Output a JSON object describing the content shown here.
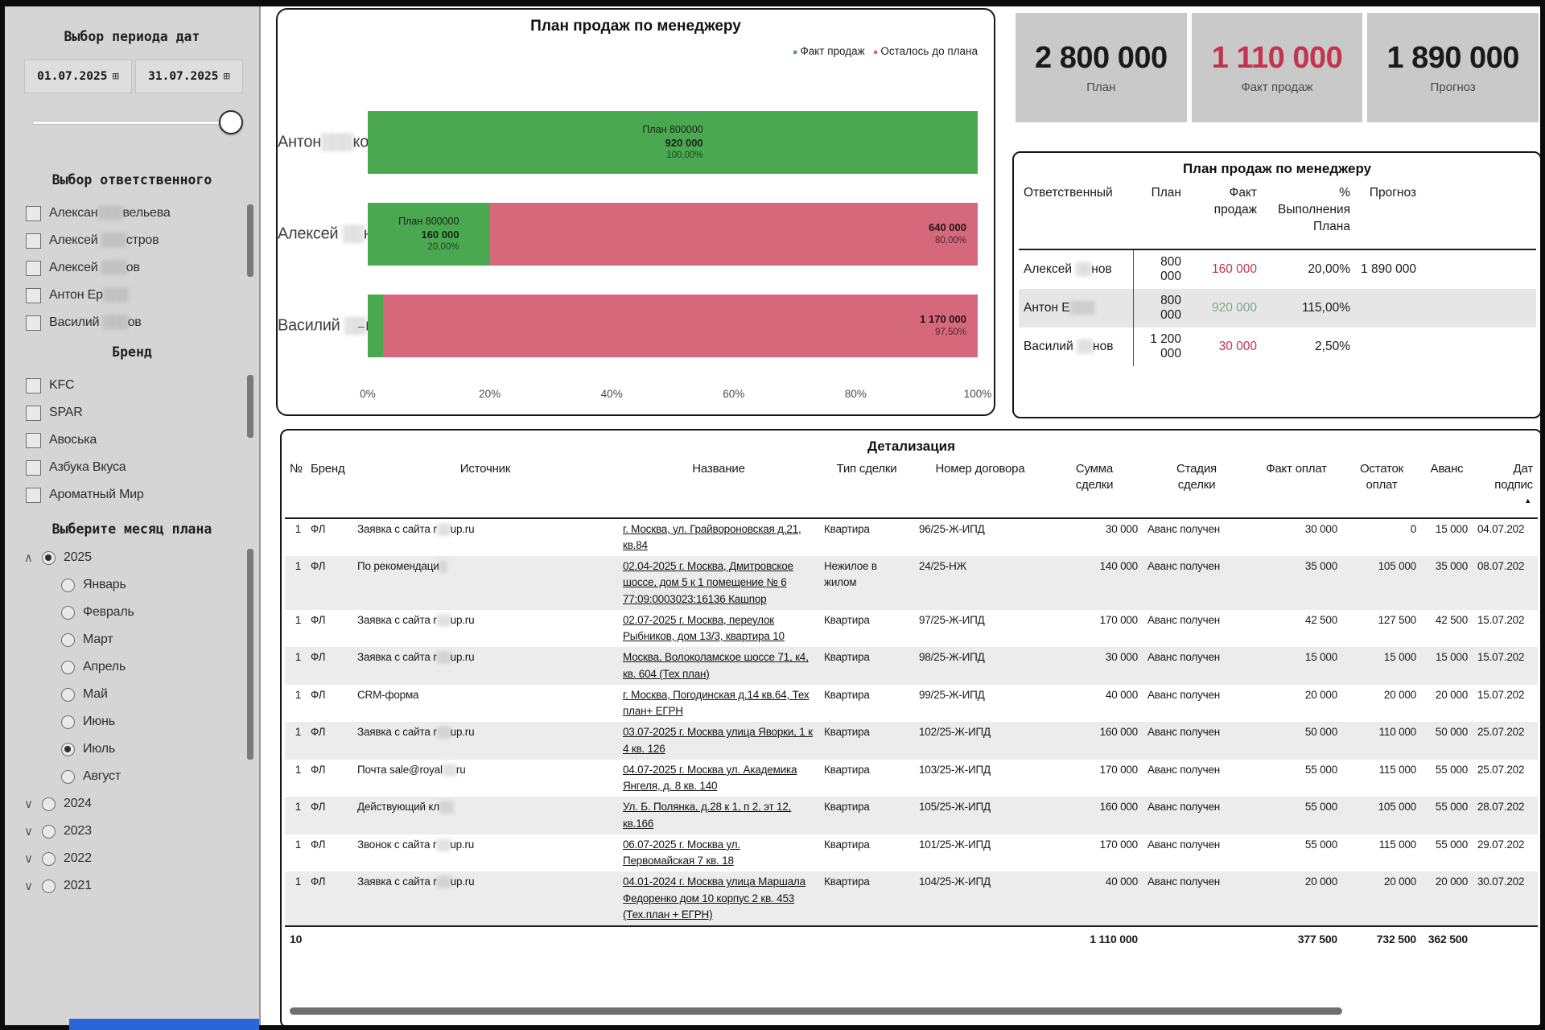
{
  "sidebar": {
    "period_header": "Выбор периода дат",
    "date_from": "01.07.2025",
    "date_to": "31.07.2025",
    "calendar_icon": "⊞",
    "owner_header": "Выбор ответственного",
    "owners": [
      {
        "pre": "Алексан",
        "blur": "▒▒▒",
        "post": "вельева"
      },
      {
        "pre": "Алексей ",
        "blur": "▒▒▒",
        "post": "стров"
      },
      {
        "pre": "Алексей ",
        "blur": "▒▒▒",
        "post": "ов"
      },
      {
        "pre": "Антон Ер",
        "blur": "▒▒▒",
        "post": ""
      },
      {
        "pre": "Василий ",
        "blur": "▒▒▒",
        "post": "ов"
      }
    ],
    "brand_header": "Бренд",
    "brands": [
      "KFC",
      "SPAR",
      "Авоська",
      "Азбука Вкуса",
      "Ароматный Мир"
    ],
    "month_header": "Выберите месяц плана",
    "plan_years": [
      {
        "label": "2025",
        "chevron": "∧",
        "selected": true,
        "expanded": true,
        "months": [
          {
            "label": "Январь"
          },
          {
            "label": "Февраль"
          },
          {
            "label": "Март"
          },
          {
            "label": "Апрель"
          },
          {
            "label": "Май"
          },
          {
            "label": "Июнь"
          },
          {
            "label": "Июль",
            "selected": true
          },
          {
            "label": "Август"
          }
        ]
      },
      {
        "label": "2024",
        "chevron": "∨"
      },
      {
        "label": "2023",
        "chevron": "∨"
      },
      {
        "label": "2022",
        "chevron": "∨"
      },
      {
        "label": "2021",
        "chevron": "∨"
      }
    ]
  },
  "chart": {
    "title": "План продаж по менеджеру",
    "legend": [
      {
        "label": "Факт продаж",
        "color": "#4aa950"
      },
      {
        "label": "Осталось до плана",
        "color": "#d5687a"
      }
    ],
    "axis_ticks": [
      "0%",
      "20%",
      "40%",
      "60%",
      "80%",
      "100%"
    ],
    "bars": [
      {
        "category": {
          "pre": "Антон",
          "blur": "▒▒▒",
          "post": "ков"
        },
        "green_pct": 100,
        "red_pct": 0,
        "green_label": [
          "План 800000",
          "920 000",
          "100,00%"
        ],
        "red_label": null,
        "dash": false
      },
      {
        "category": {
          "pre": "Алексей ",
          "blur": "▒▒",
          "post": "нов"
        },
        "green_pct": 20,
        "red_pct": 80,
        "green_label": [
          "План 800000",
          "160 000",
          "20,00%"
        ],
        "red_label": [
          "640 000",
          "80,00%"
        ],
        "dash": false
      },
      {
        "category": {
          "pre": "Василий ",
          "blur": "▒▒",
          "post": "нов"
        },
        "green_pct": 2.5,
        "red_pct": 97.5,
        "green_label": null,
        "red_label": [
          "1 170 000",
          "97,50%"
        ],
        "dash": true
      }
    ]
  },
  "chart_data": {
    "type": "bar",
    "subtype": "stacked-horizontal-percent-of-plan",
    "title": "План продаж по менеджеру",
    "categories": [
      "Антон ▒ков",
      "Алексей ▒нов",
      "Василий ▒нов"
    ],
    "series": [
      {
        "name": "Факт продаж",
        "color": "#4aa950",
        "values_pct": [
          100.0,
          20.0,
          2.5
        ]
      },
      {
        "name": "Осталось до плана",
        "color": "#d5687a",
        "values_pct": [
          0.0,
          80.0,
          97.5
        ]
      }
    ],
    "plan_values": [
      800000,
      800000,
      1200000
    ],
    "fact_values": [
      920000,
      160000,
      30000
    ],
    "remaining_values": [
      0,
      640000,
      1170000
    ],
    "pct_labels": [
      "100,00%",
      "20,00%",
      "97,50%"
    ],
    "xlim": [
      0,
      100
    ],
    "x_ticks": [
      "0%",
      "20%",
      "40%",
      "60%",
      "80%",
      "100%"
    ],
    "legend_position": "top-right",
    "grid": false
  },
  "kpis": [
    {
      "value": "2 800 000",
      "label": "План",
      "color": "#1a1a1a"
    },
    {
      "value": "1 110 000",
      "label": "Факт продаж",
      "color": "#c2354f"
    },
    {
      "value": "1 890 000",
      "label": "Прогноз",
      "color": "#1a1a1a"
    }
  ],
  "manager_table": {
    "title": "План продаж по менеджеру",
    "columns": [
      "Ответственный",
      "План",
      "Факт продаж",
      "% Выполнения\nПлана",
      "Прогноз"
    ],
    "rows": [
      {
        "name": {
          "pre": "Алексей ",
          "blur": "▒▒",
          "post": "нов"
        },
        "plan": "800 000",
        "fact": "160 000",
        "fact_tone": "neg",
        "pct": "20,00%",
        "forecast": "1 890 000"
      },
      {
        "name": {
          "pre": "Антон Е",
          "blur": "▒▒▒",
          "post": ""
        },
        "plan": "800 000",
        "fact": "920 000",
        "fact_tone": "pos",
        "pct": "115,00%",
        "forecast": ""
      },
      {
        "name": {
          "pre": "Василий ",
          "blur": "▒▒",
          "post": "нов"
        },
        "plan": "1 200 000",
        "fact": "30 000",
        "fact_tone": "neg",
        "pct": "2,50%",
        "forecast": ""
      }
    ]
  },
  "detail_table": {
    "title": "Детализация",
    "columns": [
      "№",
      "Бренд",
      "Источник",
      "Название",
      "Тип сделки",
      "Номер договора",
      "Сумма\nсделки",
      "Стадия\nсделки",
      "Факт оплат",
      "Остаток\nоплат",
      "Аванс",
      "Дат\nподпис"
    ],
    "sort_icon": "▲",
    "rows": [
      {
        "num": "1",
        "brand": "ФЛ",
        "src_pre": "Заявка с сайта r",
        "src_blur": "▒▒",
        "src_post": "up.ru",
        "name": "г. Москва, ул. Грайвороновская д.21, кв.84",
        "type": "Квартира",
        "contract": "96/25-Ж-ИПД",
        "sum": "30 000",
        "stage": "Аванс получен",
        "paid": "30 000",
        "rest": "0",
        "advance": "15 000",
        "date": "04.07.202"
      },
      {
        "num": "1",
        "brand": "ФЛ",
        "src_pre": "По рекомендаци",
        "src_blur": "▒",
        "src_post": "",
        "name": "02.04-2025 г. Москва, Дмитровское шоссе, дом 5 к 1 помещение № 6 77:09:0003023:16136 Кашпор",
        "type": "Нежилое в жилом",
        "contract": "24/25-НЖ",
        "sum": "140 000",
        "stage": "Аванс получен",
        "paid": "35 000",
        "rest": "105 000",
        "advance": "35 000",
        "date": "08.07.202"
      },
      {
        "num": "1",
        "brand": "ФЛ",
        "src_pre": "Заявка с сайта r",
        "src_blur": "▒▒",
        "src_post": "up.ru",
        "name": "02.07-2025 г. Москва, переулок Рыбников, дом 13/3, квартира 10",
        "type": "Квартира",
        "contract": "97/25-Ж-ИПД",
        "sum": "170 000",
        "stage": "Аванс получен",
        "paid": "42 500",
        "rest": "127 500",
        "advance": "42 500",
        "date": "15.07.202"
      },
      {
        "num": "1",
        "brand": "ФЛ",
        "src_pre": "Заявка с сайта r",
        "src_blur": "▒▒",
        "src_post": "up.ru",
        "name": "Москва, Волоколамское шоссе 71, к4, кв. 604 (Тех план)",
        "type": "Квартира",
        "contract": "98/25-Ж-ИПД",
        "sum": "30 000",
        "stage": "Аванс получен",
        "paid": "15 000",
        "rest": "15 000",
        "advance": "15 000",
        "date": "15.07.202"
      },
      {
        "num": "1",
        "brand": "ФЛ",
        "src_pre": "CRM-форма",
        "src_blur": "",
        "src_post": "",
        "name": "г. Москва, Погодинская д.14 кв.64, Тех план+ ЕГРН",
        "type": "Квартира",
        "contract": "99/25-Ж-ИПД",
        "sum": "40 000",
        "stage": "Аванс получен",
        "paid": "20 000",
        "rest": "20 000",
        "advance": "20 000",
        "date": "15.07.202"
      },
      {
        "num": "1",
        "brand": "ФЛ",
        "src_pre": "Заявка с сайта r",
        "src_blur": "▒▒",
        "src_post": "up.ru",
        "name": "03.07-2025 г. Москва улица Яворки, 1 к 4 кв. 126",
        "type": "Квартира",
        "contract": "102/25-Ж-ИПД",
        "sum": "160 000",
        "stage": "Аванс получен",
        "paid": "50 000",
        "rest": "110 000",
        "advance": "50 000",
        "date": "25.07.202"
      },
      {
        "num": "1",
        "brand": "ФЛ",
        "src_pre": "Почта sale@royal",
        "src_blur": "▒▒",
        "src_post": "ru",
        "name": "04.07-2025 г. Москва ул. Академика Янгеля, д. 8 кв. 140",
        "type": "Квартира",
        "contract": "103/25-Ж-ИПД",
        "sum": "170 000",
        "stage": "Аванс получен",
        "paid": "55 000",
        "rest": "115 000",
        "advance": "55 000",
        "date": "25.07.202"
      },
      {
        "num": "1",
        "brand": "ФЛ",
        "src_pre": "Действующий кл",
        "src_blur": "▒▒",
        "src_post": "",
        "name": "Ул. Б. Полянка, д.28 к 1, п 2, эт 12, кв.166",
        "type": "Квартира",
        "contract": "105/25-Ж-ИПД",
        "sum": "160 000",
        "stage": "Аванс получен",
        "paid": "55 000",
        "rest": "105 000",
        "advance": "55 000",
        "date": "28.07.202"
      },
      {
        "num": "1",
        "brand": "ФЛ",
        "src_pre": "Звонок с сайта r",
        "src_blur": "▒▒",
        "src_post": "up.ru",
        "name": "06.07-2025 г. Москва ул. Первомайская 7 кв. 18",
        "type": "Квартира",
        "contract": "101/25-Ж-ИПД",
        "sum": "170 000",
        "stage": "Аванс получен",
        "paid": "55 000",
        "rest": "115 000",
        "advance": "55 000",
        "date": "29.07.202"
      },
      {
        "num": "1",
        "brand": "ФЛ",
        "src_pre": "Заявка с сайта r",
        "src_blur": "▒▒",
        "src_post": "up.ru",
        "name": "04.01-2024 г. Москва улица Маршала Федоренко дом 10 корпус 2 кв. 453 (Тех.план + ЕГРН)",
        "type": "Квартира",
        "contract": "104/25-Ж-ИПД",
        "sum": "40 000",
        "stage": "Аванс получен",
        "paid": "20 000",
        "rest": "20 000",
        "advance": "20 000",
        "date": "30.07.202"
      }
    ],
    "totals": {
      "count": "10",
      "sum": "1 110 000",
      "paid": "377 500",
      "rest": "732 500",
      "advance": "362 500"
    }
  }
}
